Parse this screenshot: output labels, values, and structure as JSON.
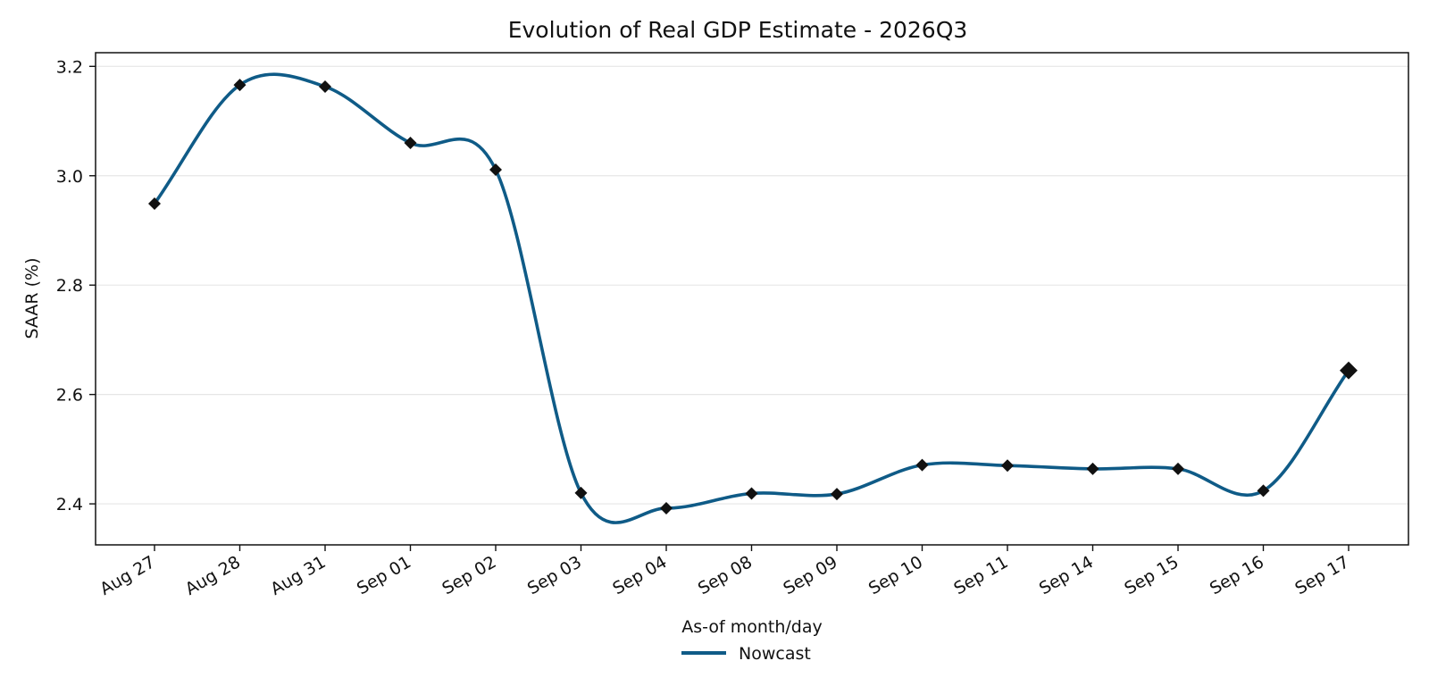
{
  "chart_data": {
    "type": "line",
    "title": "Evolution of Real GDP Estimate - 2026Q3",
    "xlabel": "As-of month/day",
    "ylabel": "SAAR (%)",
    "categories": [
      "Aug 27",
      "Aug 28",
      "Aug 31",
      "Sep 01",
      "Sep 02",
      "Sep 03",
      "Sep 04",
      "Sep 08",
      "Sep 09",
      "Sep 10",
      "Sep 11",
      "Sep 14",
      "Sep 15",
      "Sep 16",
      "Sep 17"
    ],
    "series": [
      {
        "name": "Nowcast",
        "values": [
          2.949,
          3.166,
          3.163,
          3.06,
          3.011,
          2.42,
          2.392,
          2.419,
          2.418,
          2.471,
          2.47,
          2.464,
          2.464,
          2.424,
          2.644
        ],
        "color": "#0f5b87",
        "marker_color": "#111111"
      }
    ],
    "yticks": [
      2.4,
      2.6,
      2.8,
      3.0,
      3.2
    ],
    "ylim": [
      2.325,
      3.225
    ],
    "grid": "horizontal",
    "legend_position": "bottom-center"
  }
}
